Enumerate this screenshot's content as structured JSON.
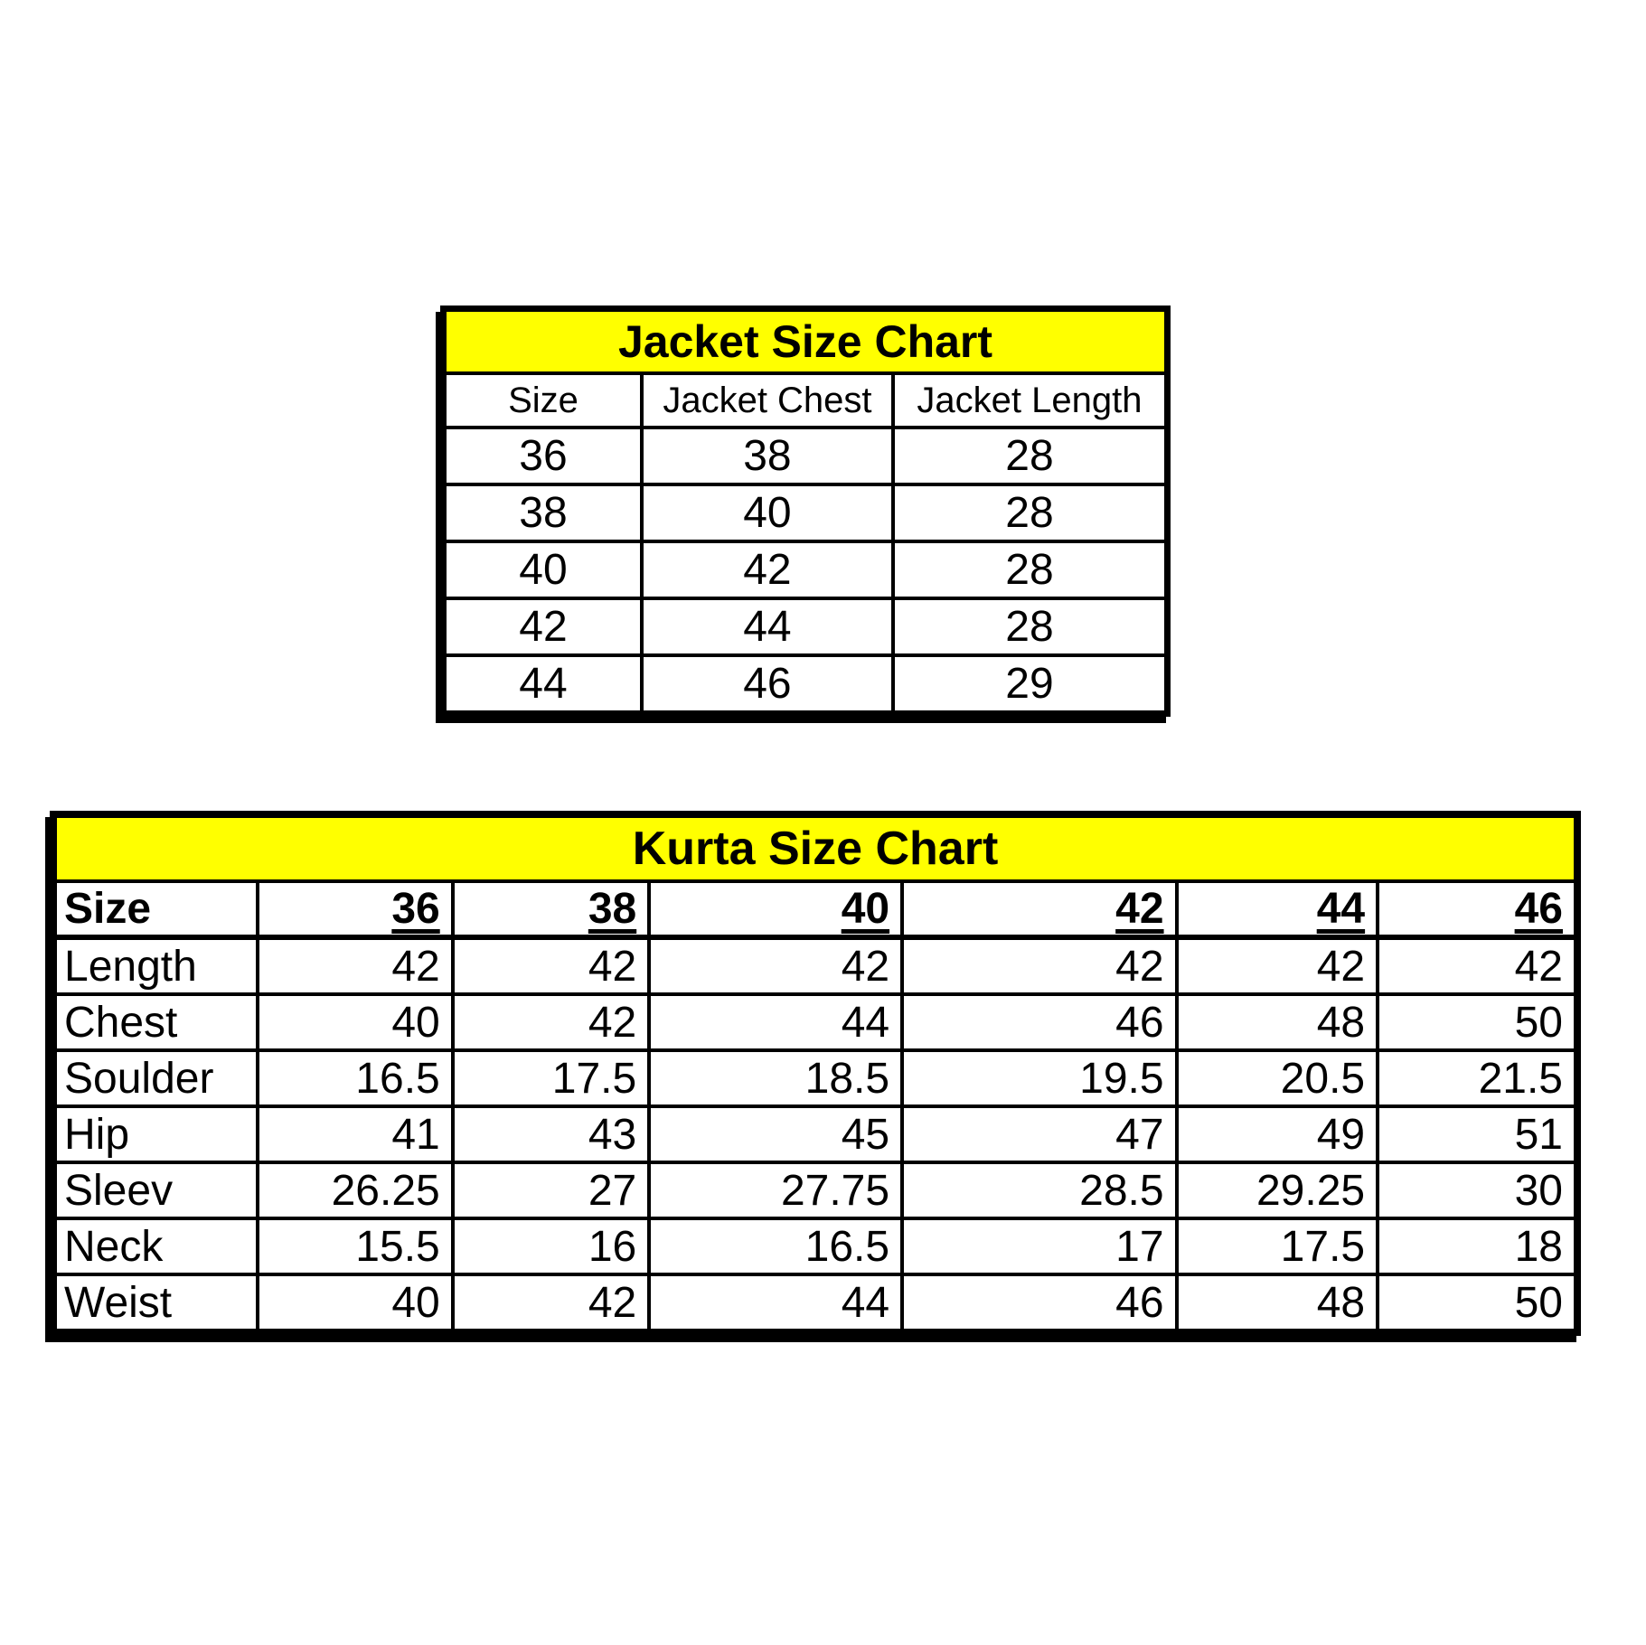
{
  "colors": {
    "title_band": "#ffff00",
    "border": "#000000",
    "text": "#000000",
    "background": "#ffffff"
  },
  "chart_data": [
    {
      "type": "table",
      "title": "Jacket Size Chart",
      "columns": [
        "Size",
        "Jacket Chest",
        "Jacket Length"
      ],
      "rows": [
        [
          "36",
          "38",
          "28"
        ],
        [
          "38",
          "40",
          "28"
        ],
        [
          "40",
          "42",
          "28"
        ],
        [
          "42",
          "44",
          "28"
        ],
        [
          "44",
          "46",
          "29"
        ]
      ]
    },
    {
      "type": "table",
      "title": "Kurta Size Chart",
      "columns": [
        "Size",
        "36",
        "38",
        "40",
        "42",
        "44",
        "46"
      ],
      "rows": [
        [
          "Length",
          "42",
          "42",
          "42",
          "42",
          "42",
          "42"
        ],
        [
          "Chest",
          "40",
          "42",
          "44",
          "46",
          "48",
          "50"
        ],
        [
          "Soulder",
          "16.5",
          "17.5",
          "18.5",
          "19.5",
          "20.5",
          "21.5"
        ],
        [
          "Hip",
          "41",
          "43",
          "45",
          "47",
          "49",
          "51"
        ],
        [
          "Sleev",
          "26.25",
          "27",
          "27.75",
          "28.5",
          "29.25",
          "30"
        ],
        [
          "Neck",
          "15.5",
          "16",
          "16.5",
          "17",
          "17.5",
          "18"
        ],
        [
          "Weist",
          "40",
          "42",
          "44",
          "46",
          "48",
          "50"
        ]
      ]
    }
  ]
}
